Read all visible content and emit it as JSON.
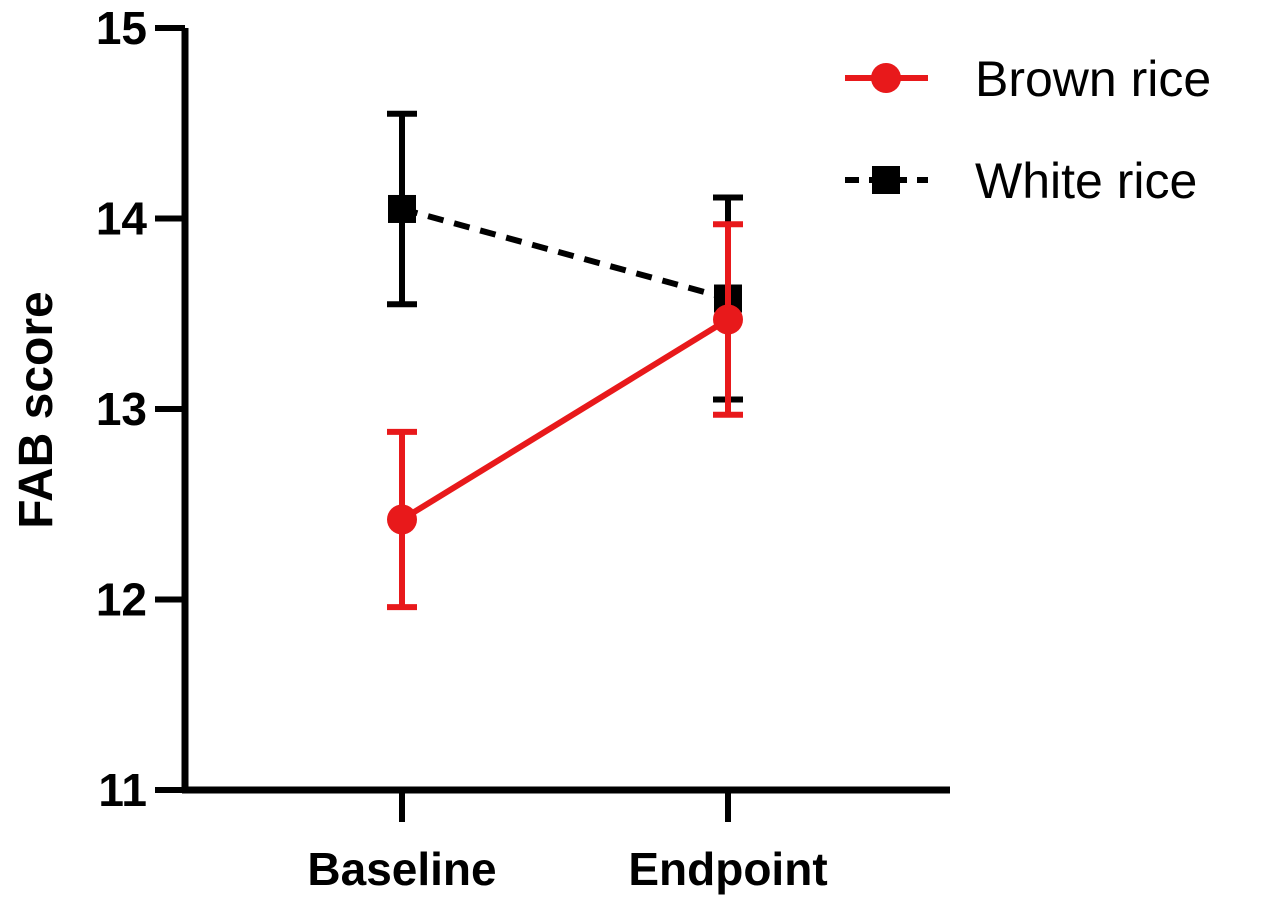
{
  "chart_data": {
    "type": "line",
    "title": "",
    "xlabel": "",
    "ylabel": "FAB score",
    "ylim": [
      11,
      15
    ],
    "yticks": [
      11,
      12,
      13,
      14,
      15
    ],
    "categories": [
      "Baseline",
      "Endpoint"
    ],
    "grid": false,
    "legend_position": "top-right",
    "series": [
      {
        "name": "Brown rice",
        "values": [
          12.42,
          13.47
        ],
        "error": [
          0.46,
          0.5
        ],
        "color": "#e8191b",
        "line_style": "solid",
        "marker": "circle"
      },
      {
        "name": "White rice",
        "values": [
          14.05,
          13.58
        ],
        "error": [
          0.5,
          0.53
        ],
        "color": "#000000",
        "line_style": "dashed",
        "marker": "square"
      }
    ]
  }
}
